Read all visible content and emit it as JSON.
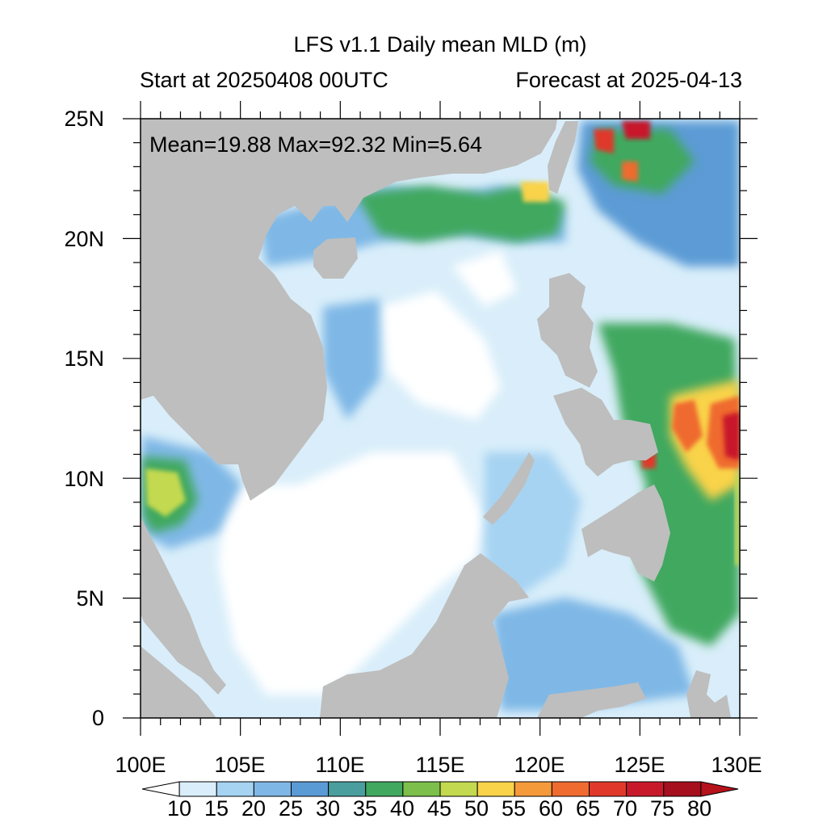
{
  "title": "LFS v1.1 Daily mean MLD (m)",
  "subtitle_left": "Start at 20250408 00UTC",
  "subtitle_right": "Forecast at 2025-04-13",
  "stats": "Mean=19.88  Max=92.32  Min=5.64",
  "axes": {
    "lon_labels": [
      "100E",
      "105E",
      "110E",
      "115E",
      "120E",
      "125E",
      "130E"
    ],
    "lat_labels": [
      "25N",
      "20N",
      "15N",
      "10N",
      "5N",
      "0"
    ],
    "lon_range": [
      100,
      130
    ],
    "lat_range": [
      0,
      25
    ]
  },
  "colorbar": {
    "levels": [
      "10",
      "15",
      "20",
      "25",
      "30",
      "35",
      "40",
      "45",
      "50",
      "55",
      "60",
      "65",
      "70",
      "75",
      "80"
    ],
    "colors": [
      "#ffffff",
      "#d9eefa",
      "#a6d3f2",
      "#7fb8e6",
      "#5b9bd5",
      "#4a9e9e",
      "#41a85f",
      "#7cbf4a",
      "#c3d94f",
      "#f9d34a",
      "#f59a3a",
      "#ef6b2f",
      "#e0392b",
      "#c8192a",
      "#a50f1e",
      "#b5121b"
    ]
  },
  "colors": {
    "land": "#bebebe",
    "ocean_base": "#d9eefa"
  }
}
